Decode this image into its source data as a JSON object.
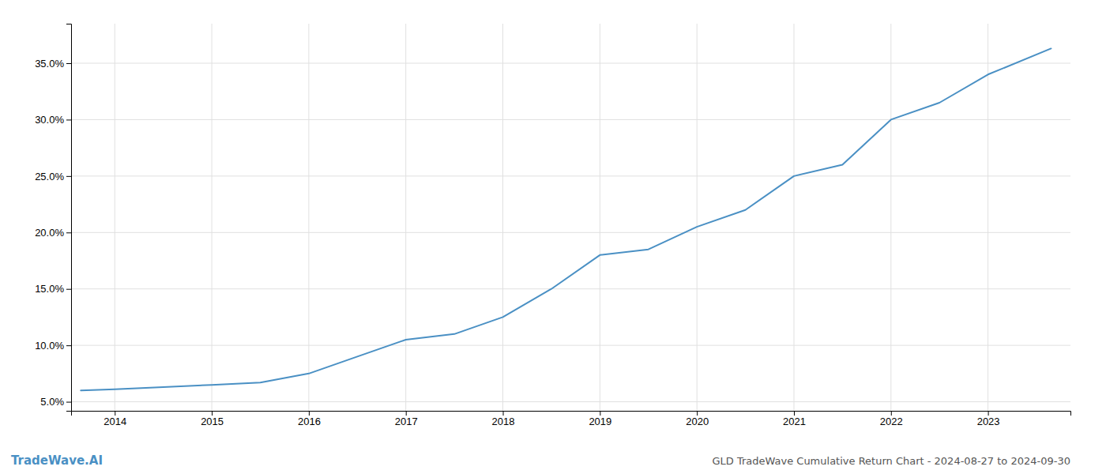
{
  "chart_data": {
    "type": "line",
    "title": "GLD TradeWave Cumulative Return Chart - 2024-08-27 to 2024-09-30",
    "annotations": [
      "TradeWave.AI"
    ],
    "x": [
      2013.65,
      2014.0,
      2014.5,
      2015.0,
      2015.5,
      2016.0,
      2016.5,
      2017.0,
      2017.5,
      2018.0,
      2018.5,
      2019.0,
      2019.5,
      2020.0,
      2020.5,
      2021.0,
      2021.5,
      2022.0,
      2022.5,
      2023.0,
      2023.65
    ],
    "values": [
      0.06,
      0.061,
      0.063,
      0.065,
      0.067,
      0.075,
      0.09,
      0.105,
      0.11,
      0.125,
      0.15,
      0.18,
      0.185,
      0.205,
      0.22,
      0.25,
      0.26,
      0.3,
      0.315,
      0.34,
      0.363
    ],
    "color": "#4a90c4",
    "xlim": [
      2013.55,
      2023.85
    ],
    "ylim": [
      0.042,
      0.385
    ],
    "xticks": [
      2014,
      2015,
      2016,
      2017,
      2018,
      2019,
      2020,
      2021,
      2022,
      2023
    ],
    "yticks": [
      {
        "value": 0.05,
        "label": "5.0%"
      },
      {
        "value": 0.1,
        "label": "10.0%"
      },
      {
        "value": 0.15,
        "label": "15.0%"
      },
      {
        "value": 0.2,
        "label": "20.0%"
      },
      {
        "value": 0.25,
        "label": "25.0%"
      },
      {
        "value": 0.3,
        "label": "30.0%"
      },
      {
        "value": 0.35,
        "label": "35.0%"
      }
    ],
    "grid": true
  }
}
